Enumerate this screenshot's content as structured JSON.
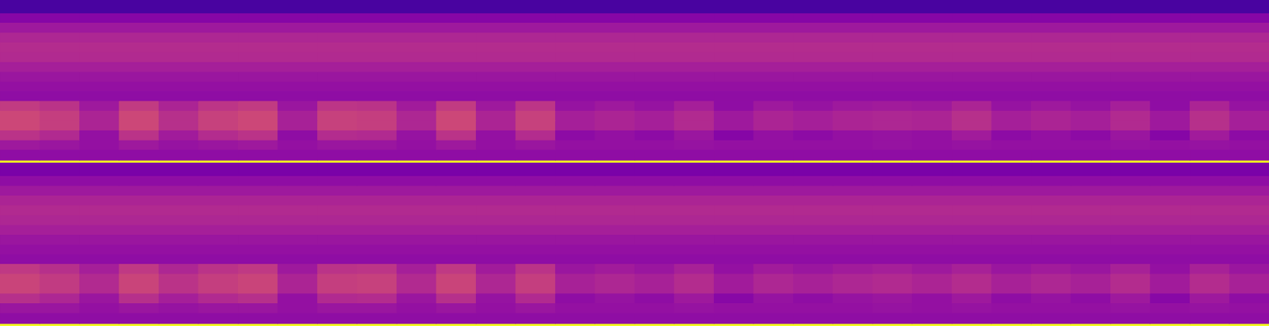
{
  "chart_data": [
    {
      "type": "heatmap",
      "tick_labels": false,
      "xlim": [
        0,
        32
      ],
      "ylim": [
        0,
        100
      ],
      "zlim": [
        0,
        100
      ],
      "y_edges": [
        0,
        1.5,
        8,
        14,
        20,
        26,
        32,
        38,
        44,
        50,
        56,
        62,
        68,
        74,
        80,
        86,
        92,
        100
      ],
      "cells": [
        [
          100,
          100,
          100,
          100,
          100,
          100,
          100,
          100,
          100,
          100,
          100,
          100,
          100,
          100,
          100,
          100,
          100,
          100,
          100,
          100,
          100,
          100,
          100,
          100,
          100,
          100,
          100,
          100,
          100,
          100,
          100,
          100
        ],
        [
          30,
          30,
          30,
          30,
          30,
          30,
          30,
          30,
          30,
          30,
          30,
          30,
          30,
          30,
          30,
          30,
          30,
          30,
          30,
          30,
          30,
          30,
          30,
          30,
          30,
          30,
          30,
          30,
          30,
          30,
          30,
          30
        ],
        [
          34,
          33,
          31,
          34,
          32,
          33,
          34,
          31,
          33,
          33,
          31,
          34,
          31,
          33,
          31,
          31,
          31,
          32,
          31,
          31,
          31,
          31,
          32,
          31,
          32,
          31,
          31,
          31,
          32,
          31,
          32,
          31
        ],
        [
          43,
          40,
          31,
          43,
          35,
          41,
          43,
          30,
          41,
          40,
          32,
          43,
          31,
          41,
          29,
          31,
          29,
          33,
          27,
          31,
          29,
          31,
          32,
          31,
          35,
          29,
          31,
          29,
          33,
          27,
          35,
          29
        ],
        [
          50,
          47,
          38,
          50,
          42,
          48,
          50,
          37,
          48,
          47,
          39,
          50,
          38,
          48,
          36,
          38,
          36,
          40,
          34,
          38,
          36,
          38,
          39,
          38,
          42,
          36,
          38,
          36,
          40,
          34,
          42,
          36
        ],
        [
          50,
          47,
          38,
          50,
          42,
          48,
          50,
          37,
          48,
          47,
          39,
          50,
          38,
          48,
          36,
          38,
          36,
          40,
          34,
          38,
          36,
          38,
          39,
          38,
          42,
          36,
          38,
          36,
          40,
          34,
          42,
          36
        ],
        [
          46,
          43,
          34,
          46,
          38,
          44,
          46,
          33,
          44,
          43,
          35,
          46,
          34,
          44,
          32,
          34,
          32,
          36,
          30,
          34,
          32,
          34,
          35,
          34,
          38,
          32,
          34,
          32,
          36,
          30,
          38,
          32
        ],
        [
          30,
          30,
          30,
          30,
          30,
          30,
          30,
          30,
          30,
          30,
          30,
          30,
          30,
          30,
          30,
          30,
          30,
          30,
          30,
          30,
          30,
          30,
          30,
          30,
          30,
          30,
          30,
          30,
          30,
          30,
          30,
          30
        ],
        [
          31,
          31,
          31,
          31,
          31,
          31,
          31,
          31,
          31,
          31,
          31,
          31,
          31,
          31,
          31,
          31,
          31,
          31,
          31,
          31,
          31,
          31,
          31,
          31,
          31,
          31,
          31,
          31,
          31,
          31,
          31,
          31
        ],
        [
          33,
          33,
          33,
          33,
          33,
          33,
          33,
          33,
          33,
          33,
          33,
          33,
          33,
          33,
          33,
          33,
          33,
          33,
          33,
          33,
          33,
          33,
          33,
          33,
          33,
          33,
          33,
          33,
          33,
          33,
          33,
          33
        ],
        [
          36,
          36,
          36,
          36,
          36,
          36,
          36,
          36,
          36,
          36,
          36,
          36,
          36,
          36,
          36,
          36,
          36,
          36,
          36,
          36,
          36,
          36,
          36,
          36,
          36,
          36,
          36,
          36,
          36,
          36,
          36,
          36
        ],
        [
          40,
          40,
          40,
          40,
          40,
          40,
          40,
          40,
          40,
          40,
          40,
          40,
          40,
          40,
          40,
          40,
          40,
          40,
          40,
          40,
          40,
          40,
          40,
          40,
          40,
          40,
          40,
          40,
          40,
          40,
          40,
          40
        ],
        [
          41,
          41,
          41,
          41,
          41,
          41,
          41,
          41,
          41,
          41,
          41,
          41,
          41,
          41,
          41,
          41,
          41,
          41,
          41,
          41,
          41,
          41,
          41,
          41,
          41,
          41,
          41,
          41,
          41,
          41,
          41,
          41
        ],
        [
          39,
          39,
          39,
          39,
          39,
          39,
          39,
          39,
          39,
          39,
          39,
          39,
          39,
          39,
          39,
          39,
          39,
          39,
          39,
          39,
          39,
          39,
          39,
          39,
          39,
          39,
          39,
          39,
          39,
          39,
          39,
          39
        ],
        [
          34,
          34,
          34,
          34,
          34,
          34,
          34,
          34,
          34,
          34,
          34,
          34,
          34,
          34,
          34,
          34,
          34,
          34,
          34,
          34,
          34,
          34,
          34,
          34,
          34,
          34,
          34,
          34,
          34,
          34,
          34,
          34
        ],
        [
          27,
          27,
          27,
          27,
          27,
          27,
          27,
          27,
          27,
          27,
          27,
          27,
          27,
          27,
          27,
          27,
          27,
          27,
          27,
          27,
          27,
          27,
          27,
          27,
          27,
          27,
          27,
          27,
          27,
          27,
          27,
          27
        ],
        [
          12,
          12,
          12,
          12,
          12,
          12,
          12,
          12,
          12,
          12,
          12,
          12,
          12,
          12,
          12,
          12,
          12,
          12,
          12,
          12,
          12,
          12,
          12,
          12,
          12,
          12,
          12,
          12,
          12,
          12,
          12,
          12
        ]
      ]
    },
    {
      "type": "heatmap",
      "tick_labels": false,
      "xlim": [
        0,
        32
      ],
      "ylim": [
        0,
        100
      ],
      "zlim": [
        0,
        100
      ],
      "y_edges": [
        0,
        1.5,
        8,
        14,
        20,
        26,
        32,
        38,
        44,
        50,
        56,
        62,
        68,
        74,
        80,
        86,
        92,
        100
      ],
      "cells": [
        [
          100,
          100,
          100,
          100,
          100,
          100,
          100,
          100,
          100,
          100,
          100,
          100,
          100,
          100,
          100,
          100,
          100,
          100,
          100,
          100,
          100,
          100,
          100,
          100,
          100,
          100,
          100,
          100,
          100,
          100,
          100,
          100
        ],
        [
          30,
          30,
          30,
          30,
          30,
          30,
          30,
          30,
          30,
          30,
          30,
          30,
          30,
          30,
          30,
          30,
          30,
          30,
          30,
          30,
          30,
          30,
          30,
          30,
          30,
          30,
          30,
          30,
          30,
          30,
          30,
          30
        ],
        [
          33,
          33,
          31,
          33,
          32,
          33,
          33,
          31,
          33,
          33,
          31,
          33,
          31,
          33,
          31,
          31,
          31,
          32,
          31,
          31,
          31,
          31,
          32,
          31,
          32,
          31,
          31,
          31,
          32,
          31,
          32,
          31
        ],
        [
          42,
          39,
          33,
          42,
          36,
          40,
          42,
          31,
          40,
          41,
          33,
          42,
          32,
          40,
          30,
          32,
          30,
          34,
          28,
          32,
          30,
          32,
          33,
          31,
          34,
          30,
          32,
          30,
          34,
          28,
          34,
          30
        ],
        [
          49,
          46,
          40,
          49,
          43,
          47,
          49,
          38,
          47,
          48,
          40,
          49,
          39,
          47,
          37,
          39,
          37,
          41,
          35,
          39,
          37,
          39,
          40,
          38,
          41,
          37,
          39,
          37,
          41,
          35,
          41,
          37
        ],
        [
          49,
          46,
          40,
          49,
          43,
          47,
          49,
          38,
          47,
          48,
          40,
          49,
          39,
          47,
          37,
          39,
          37,
          41,
          35,
          39,
          37,
          39,
          40,
          38,
          41,
          37,
          39,
          37,
          41,
          35,
          41,
          37
        ],
        [
          45,
          42,
          36,
          45,
          39,
          43,
          45,
          34,
          43,
          44,
          36,
          45,
          35,
          43,
          33,
          35,
          33,
          37,
          31,
          35,
          33,
          35,
          36,
          34,
          37,
          33,
          35,
          33,
          37,
          31,
          37,
          33
        ],
        [
          30,
          30,
          30,
          30,
          30,
          30,
          30,
          30,
          30,
          30,
          30,
          30,
          30,
          30,
          30,
          30,
          30,
          30,
          30,
          30,
          30,
          30,
          30,
          30,
          30,
          30,
          30,
          30,
          30,
          30,
          30,
          30
        ],
        [
          31,
          31,
          31,
          31,
          31,
          31,
          31,
          31,
          31,
          31,
          31,
          31,
          31,
          31,
          31,
          31,
          31,
          31,
          31,
          31,
          31,
          31,
          31,
          31,
          31,
          31,
          31,
          31,
          31,
          31,
          31,
          31
        ],
        [
          33,
          33,
          33,
          33,
          33,
          33,
          33,
          33,
          33,
          33,
          33,
          33,
          33,
          33,
          33,
          33,
          33,
          33,
          33,
          33,
          33,
          33,
          33,
          33,
          33,
          33,
          33,
          33,
          33,
          33,
          33,
          33
        ],
        [
          36,
          36,
          36,
          36,
          36,
          36,
          36,
          36,
          36,
          36,
          36,
          36,
          36,
          36,
          36,
          36,
          36,
          36,
          36,
          36,
          36,
          36,
          36,
          36,
          36,
          36,
          36,
          36,
          36,
          36,
          36,
          36
        ],
        [
          39,
          39,
          39,
          39,
          39,
          39,
          39,
          39,
          39,
          39,
          39,
          39,
          39,
          39,
          39,
          39,
          39,
          39,
          39,
          39,
          39,
          39,
          39,
          39,
          39,
          39,
          39,
          39,
          39,
          39,
          39,
          39
        ],
        [
          40,
          40,
          40,
          40,
          40,
          40,
          40,
          40,
          40,
          40,
          40,
          40,
          40,
          40,
          40,
          40,
          40,
          40,
          40,
          40,
          40,
          40,
          40,
          40,
          40,
          40,
          40,
          40,
          40,
          40,
          40,
          40
        ],
        [
          38,
          38,
          38,
          38,
          38,
          38,
          38,
          38,
          38,
          38,
          38,
          38,
          38,
          38,
          38,
          38,
          38,
          38,
          38,
          38,
          38,
          38,
          38,
          38,
          38,
          38,
          38,
          38,
          38,
          38,
          38,
          38
        ],
        [
          34,
          34,
          34,
          34,
          34,
          34,
          34,
          34,
          34,
          34,
          34,
          34,
          34,
          34,
          34,
          34,
          34,
          34,
          34,
          34,
          34,
          34,
          34,
          34,
          34,
          34,
          34,
          34,
          34,
          34,
          34,
          34
        ],
        [
          30,
          30,
          30,
          30,
          30,
          30,
          30,
          30,
          30,
          30,
          30,
          30,
          30,
          30,
          30,
          30,
          30,
          30,
          30,
          30,
          30,
          30,
          30,
          30,
          30,
          30,
          30,
          30,
          30,
          30,
          30,
          30
        ],
        [
          24,
          24,
          24,
          24,
          24,
          24,
          24,
          24,
          24,
          24,
          24,
          24,
          24,
          24,
          24,
          24,
          24,
          24,
          24,
          24,
          24,
          24,
          24,
          24,
          24,
          24,
          24,
          24,
          24,
          24,
          24,
          24
        ]
      ]
    }
  ]
}
